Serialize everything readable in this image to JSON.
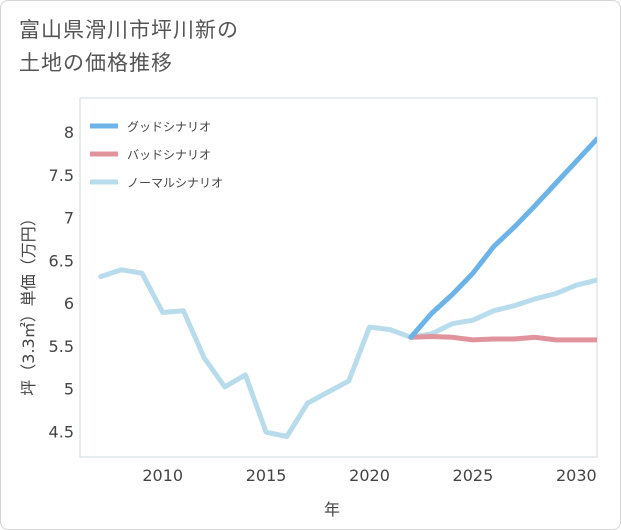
{
  "chart_data": {
    "type": "line",
    "title": "富山県滑川市坪川新の土地の価格推移",
    "xlabel": "年",
    "ylabel": "坪（3.3㎡）単価（万円）",
    "xlim": [
      2006,
      2031
    ],
    "ylim": [
      4.2,
      8.4
    ],
    "xticks": [
      2010,
      2015,
      2020,
      2025,
      2030
    ],
    "yticks": [
      4.5,
      5,
      5.5,
      6,
      6.5,
      7,
      7.5,
      8
    ],
    "ytick_labels": [
      "4.5",
      "5",
      "5.5",
      "6",
      "6.5",
      "7",
      "7.5",
      "8"
    ],
    "grid": true,
    "legend_position": "top-left",
    "series": [
      {
        "name": "グッドシナリオ",
        "color": "#6cb4e8",
        "x": [
          2022,
          2023,
          2024,
          2025,
          2026,
          2027,
          2028,
          2029,
          2030,
          2031
        ],
        "values": [
          5.6,
          5.88,
          6.1,
          6.35,
          6.66,
          6.89,
          7.14,
          7.4,
          7.66,
          7.92
        ]
      },
      {
        "name": "バッドシナリオ",
        "color": "#e0939b",
        "x": [
          2022,
          2023,
          2024,
          2025,
          2026,
          2027,
          2028,
          2029,
          2030,
          2031
        ],
        "values": [
          5.6,
          5.61,
          5.6,
          5.57,
          5.58,
          5.58,
          5.6,
          5.57,
          5.57,
          5.57
        ]
      },
      {
        "name": "ノーマルシナリオ",
        "color": "#b8dcec",
        "x": [
          2007,
          2008,
          2009,
          2010,
          2011,
          2012,
          2013,
          2014,
          2015,
          2016,
          2017,
          2018,
          2019,
          2020,
          2021,
          2022,
          2023,
          2024,
          2025,
          2026,
          2027,
          2028,
          2029,
          2030,
          2031
        ],
        "values": [
          6.31,
          6.39,
          6.35,
          5.89,
          5.91,
          5.36,
          5.02,
          5.16,
          4.49,
          4.44,
          4.83,
          4.96,
          5.09,
          5.72,
          5.69,
          5.6,
          5.64,
          5.76,
          5.8,
          5.91,
          5.97,
          6.05,
          6.11,
          6.21,
          6.27
        ]
      }
    ]
  }
}
